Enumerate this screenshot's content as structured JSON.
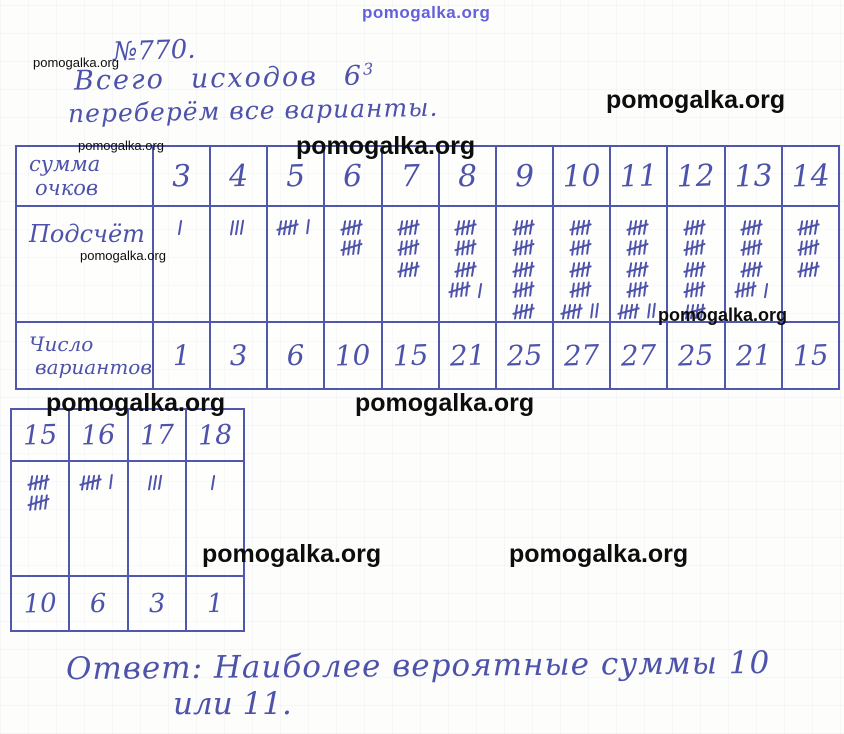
{
  "watermark": "pomogalka.org",
  "heading": {
    "number": "№770.",
    "line1_text": "Всего",
    "line1_text2": "исходов",
    "line1_base": "6",
    "line1_exp": "3",
    "line2": "переберём все варианты."
  },
  "table1": {
    "label_sums_l1": "сумма",
    "label_sums_l2": "очков",
    "label_tally": "Подсчёт",
    "label_counts_l1": "Число",
    "label_counts_l2": "вариантов",
    "sums": [
      "3",
      "4",
      "5",
      "6",
      "7",
      "8",
      "9",
      "10",
      "11",
      "12",
      "13",
      "14"
    ],
    "tallies": [
      [
        1
      ],
      [
        3
      ],
      [
        5,
        1
      ],
      [
        5,
        5
      ],
      [
        5,
        5,
        5
      ],
      [
        5,
        5,
        5,
        5,
        1
      ],
      [
        5,
        5,
        5,
        5,
        5
      ],
      [
        5,
        5,
        5,
        5,
        5,
        2
      ],
      [
        5,
        5,
        5,
        5,
        5,
        2
      ],
      [
        5,
        5,
        5,
        5,
        5
      ],
      [
        5,
        5,
        5,
        5,
        1
      ],
      [
        5,
        5,
        5
      ]
    ],
    "counts": [
      "1",
      "3",
      "6",
      "10",
      "15",
      "21",
      "25",
      "27",
      "27",
      "25",
      "21",
      "15"
    ]
  },
  "table2": {
    "sums": [
      "15",
      "16",
      "17",
      "18"
    ],
    "tallies": [
      [
        5,
        5
      ],
      [
        5,
        1
      ],
      [
        3
      ],
      [
        1
      ]
    ],
    "counts": [
      "10",
      "6",
      "3",
      "1"
    ]
  },
  "answer": {
    "line1": "Ответ: Наиболее вероятные суммы 10",
    "line2": "или 11."
  }
}
